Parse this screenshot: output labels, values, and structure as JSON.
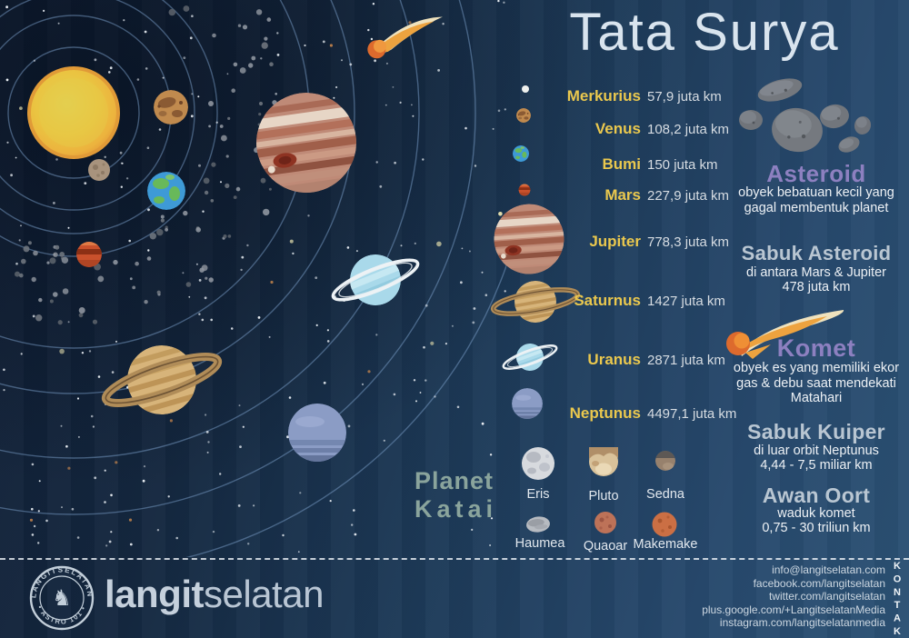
{
  "title": "Tata Surya",
  "colors": {
    "background_left": "#13233c",
    "background_right": "#2b5174",
    "planet_name_yellow": "#eac84e",
    "distance_text": "#d6dce2",
    "purple_heading": "#8d80c0",
    "steel_heading": "#b9c6d2",
    "dwarf_heading_green": "#8aa49c",
    "body_text": "#edf1f5",
    "orbit_line": "#7a9ec7",
    "star": "#e9eef3"
  },
  "planets": [
    {
      "name": "Merkurius",
      "distance": "57,9 juta km"
    },
    {
      "name": "Venus",
      "distance": "108,2 juta km"
    },
    {
      "name": "Bumi",
      "distance": "150 juta km"
    },
    {
      "name": "Mars",
      "distance": "227,9 juta km"
    },
    {
      "name": "Jupiter",
      "distance": "778,3 juta km"
    },
    {
      "name": "Saturnus",
      "distance": "1427 juta km"
    },
    {
      "name": "Uranus",
      "distance": "2871 juta km"
    },
    {
      "name": "Neptunus",
      "distance": "4497,1 juta km"
    }
  ],
  "asteroid": {
    "heading": "Asteroid",
    "description": "obyek bebatuan kecil yang gagal membentuk planet"
  },
  "sabuk_asteroid": {
    "heading": "Sabuk Asteroid",
    "line1": "di antara Mars & Jupiter",
    "line2": "478 juta km"
  },
  "komet": {
    "heading": "Komet",
    "description": "obyek es yang memiliki ekor gas & debu saat mendekati Matahari"
  },
  "sabuk_kuiper": {
    "heading": "Sabuk Kuiper",
    "line1": "di luar orbit Neptunus",
    "line2": "4,44 - 7,5 miliar km"
  },
  "awan_oort": {
    "heading": "Awan Oort",
    "line1": "waduk komet",
    "line2": "0,75 - 30 triliun km"
  },
  "dwarf_planets": {
    "heading_line1": "Planet",
    "heading_line2": "Katai",
    "items": [
      "Eris",
      "Pluto",
      "Sedna",
      "Haumea",
      "Quaoar",
      "Makemake"
    ]
  },
  "footer": {
    "stamp_top": "LANGITSELATAN",
    "stamp_bottom": "• ASTRO 101 •",
    "stamp_glyph": "♞",
    "brand_bold": "langit",
    "brand_light": "selatan",
    "kontak_label": "KONTAK",
    "contacts": [
      "info@langitselatan.com",
      "facebook.com/langitselatan",
      "twitter.com/langitselatan",
      "plus.google.com/+LangitselatanMedia",
      "instagram.com/langitselatanmedia"
    ]
  },
  "icons": {
    "sun-icon": "yellow circle",
    "comet-icon": "orange swoosh with cream tail",
    "asteroid-rocks-icon": "gray rock cluster",
    "saturn-ring-icon": "tilted ellipse ring",
    "centaur-glyph": "♞",
    "starfield": "white dots",
    "orbit-rings": "concentric arcs"
  }
}
